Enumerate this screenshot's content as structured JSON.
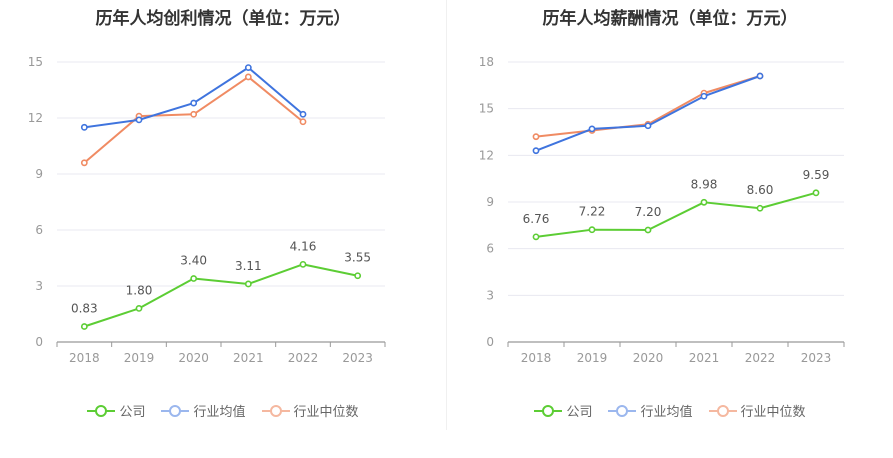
{
  "charts": [
    {
      "title": "历年人均创利情况（单位：万元）",
      "legend": [
        "公司",
        "行业均值",
        "行业中位数"
      ],
      "colors": [
        "#5ccd34",
        "#3f74de",
        "#f08b63"
      ]
    },
    {
      "title": "历年人均薪酬情况（单位：万元）",
      "legend": [
        "公司",
        "行业均值",
        "行业中位数"
      ],
      "colors": [
        "#5ccd34",
        "#3f74de",
        "#f08b63"
      ]
    }
  ],
  "chart_data": [
    {
      "type": "line",
      "title": "历年人均创利情况（单位：万元）",
      "x": [
        "2018",
        "2019",
        "2020",
        "2021",
        "2022",
        "2023"
      ],
      "ylim": [
        0,
        15
      ],
      "yticks": [
        0,
        3,
        6,
        9,
        12,
        15
      ],
      "grid": true,
      "legend_position": "bottom",
      "series": [
        {
          "name": "公司",
          "values": [
            0.83,
            1.8,
            3.4,
            3.11,
            4.16,
            3.55
          ],
          "labels": [
            "0.83",
            "1.80",
            "3.40",
            "3.11",
            "4.16",
            "3.55"
          ]
        },
        {
          "name": "行业均值",
          "values": [
            11.5,
            11.9,
            12.8,
            14.7,
            12.2,
            null
          ]
        },
        {
          "name": "行业中位数",
          "values": [
            9.6,
            12.1,
            12.2,
            14.2,
            11.8,
            null
          ]
        }
      ]
    },
    {
      "type": "line",
      "title": "历年人均薪酬情况（单位：万元）",
      "x": [
        "2018",
        "2019",
        "2020",
        "2021",
        "2022",
        "2023"
      ],
      "ylim": [
        0,
        18
      ],
      "yticks": [
        0,
        3,
        6,
        9,
        12,
        15,
        18
      ],
      "grid": true,
      "legend_position": "bottom",
      "series": [
        {
          "name": "公司",
          "values": [
            6.76,
            7.22,
            7.2,
            8.98,
            8.6,
            9.59
          ],
          "labels": [
            "6.76",
            "7.22",
            "7.20",
            "8.98",
            "8.60",
            "9.59"
          ]
        },
        {
          "name": "行业均值",
          "values": [
            12.3,
            13.7,
            13.9,
            15.8,
            17.1,
            null
          ]
        },
        {
          "name": "行业中位数",
          "values": [
            13.2,
            13.6,
            14.0,
            16.0,
            17.1,
            null
          ]
        }
      ]
    }
  ]
}
